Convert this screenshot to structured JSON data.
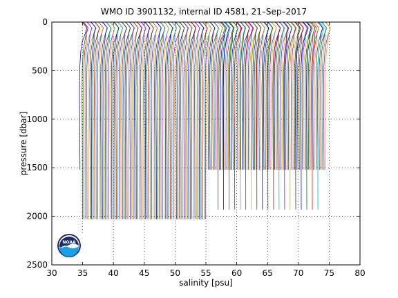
{
  "chart_data": {
    "type": "line",
    "title": "WMO ID 3901132, internal ID 4581, 21–Sep–2017",
    "xlabel": "salinity [psu]",
    "ylabel": "pressure [dbar]",
    "xlim": [
      30,
      80
    ],
    "ylim": [
      2500,
      0
    ],
    "y_reversed": true,
    "xticks": [
      30,
      35,
      40,
      45,
      50,
      55,
      60,
      65,
      70,
      75,
      80
    ],
    "yticks": [
      0,
      500,
      1000,
      1500,
      2000,
      2500
    ],
    "grid": true,
    "legend": "none",
    "series_description": "Waterfall of successive salinity profiles, each offset to the right; surface values near 34.3-75.5 psu, deep values near 34.7-74.2 psu",
    "profile_groups": [
      {
        "from_offset": 35.0,
        "to_offset": 55.0,
        "step": 0.25,
        "max_pressure": 2030
      },
      {
        "from_offset": 55.2,
        "to_offset": 74.5,
        "step": 0.25,
        "max_pressure": 1520
      },
      {
        "from_offset": 57.0,
        "to_offset": 74.0,
        "step": 0.9,
        "max_pressure": 1930
      }
    ],
    "first_profile_max_pressure": 1520,
    "colors": [
      "#0000ff",
      "#008000",
      "#ff0000",
      "#00bfbf",
      "#bf00bf",
      "#bfbf00",
      "#404040"
    ]
  },
  "logo": {
    "text": "NOAA",
    "colors": {
      "navy": "#1a2a6c",
      "sky": "#19a0e6",
      "white": "#ffffff"
    }
  }
}
